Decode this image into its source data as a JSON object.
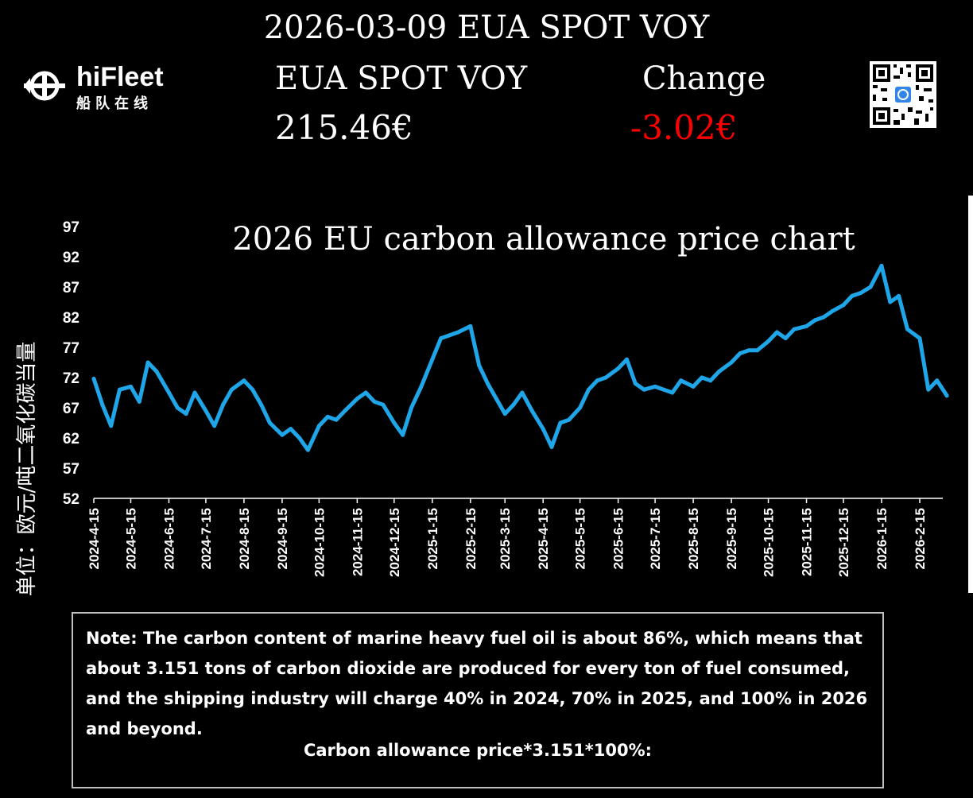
{
  "header": {
    "title": "2026-03-09 EUA SPOT VOY",
    "logo_text": "hiFleet",
    "logo_subtitle": "船队在线"
  },
  "quote": {
    "price_label": "EUA SPOT VOY",
    "price_value": "215.46€",
    "change_label": "Change",
    "change_value": "-3.02€"
  },
  "colors": {
    "line": "#1fa6e8",
    "change_negative": "#ff0000",
    "background": "#000000"
  },
  "icons": [
    "hifleet-logo-icon",
    "qr-code-icon"
  ],
  "chart_data": {
    "type": "line",
    "title": "2026 EU carbon allowance price chart",
    "ylabel": "单位：欧元/吨二氧化碳当量",
    "xlabel": "",
    "ylim": [
      52,
      97
    ],
    "yticks": [
      "97",
      "92",
      "87",
      "82",
      "77",
      "72",
      "67",
      "62",
      "57",
      "52"
    ],
    "xticks": [
      "2024-4-15",
      "2024-5-15",
      "2024-6-15",
      "2024-7-15",
      "2024-8-15",
      "2024-9-15",
      "2024-10-15",
      "2024-11-15",
      "2024-12-15",
      "2025-1-15",
      "2025-2-15",
      "2025-3-15",
      "2025-4-15",
      "2025-5-15",
      "2025-6-15",
      "2025-7-15",
      "2025-8-15",
      "2025-9-15",
      "2025-10-15",
      "2025-11-15",
      "2025-12-15",
      "2026-1-15",
      "2026-2-15"
    ],
    "grid": false,
    "series": [
      {
        "x": [
          "2024-4-15",
          "2024-4-22",
          "2024-4-29",
          "2024-5-6",
          "2024-5-15",
          "2024-5-22",
          "2024-5-29",
          "2024-6-5",
          "2024-6-15",
          "2024-6-22",
          "2024-6-29",
          "2024-7-6",
          "2024-7-15",
          "2024-7-22",
          "2024-7-29",
          "2024-8-5",
          "2024-8-15",
          "2024-8-22",
          "2024-8-29",
          "2024-9-5",
          "2024-9-15",
          "2024-9-22",
          "2024-9-29",
          "2024-10-6",
          "2024-10-15",
          "2024-10-22",
          "2024-10-29",
          "2024-11-5",
          "2024-11-15",
          "2024-11-22",
          "2024-11-29",
          "2024-12-6",
          "2024-12-15",
          "2024-12-22",
          "2024-12-29",
          "2025-1-6",
          "2025-1-15",
          "2025-1-22",
          "2025-1-29",
          "2025-2-5",
          "2025-2-15",
          "2025-2-22",
          "2025-3-1",
          "2025-3-8",
          "2025-3-15",
          "2025-3-22",
          "2025-3-29",
          "2025-4-6",
          "2025-4-15",
          "2025-4-22",
          "2025-4-29",
          "2025-5-6",
          "2025-5-15",
          "2025-5-22",
          "2025-5-29",
          "2025-6-5",
          "2025-6-15",
          "2025-6-22",
          "2025-6-29",
          "2025-7-6",
          "2025-7-15",
          "2025-7-22",
          "2025-7-29",
          "2025-8-5",
          "2025-8-15",
          "2025-8-22",
          "2025-8-29",
          "2025-9-5",
          "2025-9-15",
          "2025-9-22",
          "2025-9-29",
          "2025-10-6",
          "2025-10-15",
          "2025-10-22",
          "2025-10-29",
          "2025-11-5",
          "2025-11-15",
          "2025-11-22",
          "2025-11-29",
          "2025-12-6",
          "2025-12-15",
          "2025-12-22",
          "2025-12-29",
          "2026-1-6",
          "2026-1-15",
          "2026-1-22",
          "2026-1-29",
          "2026-2-5",
          "2026-2-15",
          "2026-2-22",
          "2026-3-1",
          "2026-3-9"
        ],
        "values": [
          71.8,
          67.5,
          64.0,
          70.0,
          70.5,
          68.0,
          74.5,
          73.0,
          69.5,
          67.0,
          66.0,
          69.5,
          66.5,
          64.0,
          67.5,
          70.0,
          71.5,
          70.0,
          67.5,
          64.5,
          62.5,
          63.5,
          62.0,
          60.0,
          64.0,
          65.5,
          65.0,
          66.5,
          68.5,
          69.5,
          68.0,
          67.5,
          64.5,
          62.5,
          67.0,
          70.5,
          75.0,
          78.5,
          79.0,
          79.5,
          80.5,
          74.0,
          71.0,
          68.5,
          66.0,
          67.5,
          69.5,
          66.5,
          63.5,
          60.5,
          64.5,
          65.0,
          67.0,
          70.0,
          71.5,
          72.0,
          73.5,
          75.0,
          71.0,
          70.0,
          70.5,
          70.0,
          69.5,
          71.5,
          70.5,
          72.0,
          71.5,
          73.0,
          74.5,
          76.0,
          76.5,
          76.5,
          78.0,
          79.5,
          78.5,
          80.0,
          80.5,
          81.5,
          82.0,
          83.0,
          84.0,
          85.5,
          86.0,
          87.0,
          90.5,
          84.5,
          85.5,
          80.0,
          78.5,
          70.0,
          71.5,
          69.0
        ]
      }
    ]
  },
  "note": {
    "text": "Note: The carbon content of marine heavy fuel oil is about 86%, which means that about 3.151 tons of carbon dioxide are produced for every ton of fuel consumed, and the shipping industry will charge 40% in 2024, 70% in 2025, and 100% in 2026 and beyond.",
    "formula": "Carbon allowance price*3.151*100%:"
  }
}
